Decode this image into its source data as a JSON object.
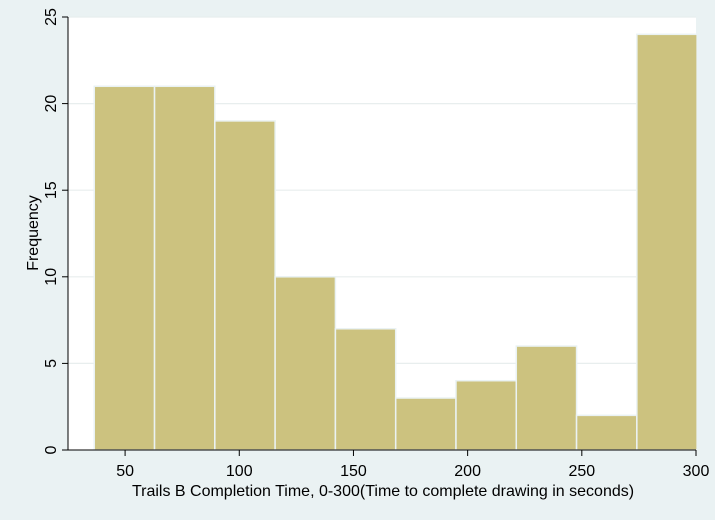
{
  "chart_data": {
    "type": "bar",
    "subtype": "histogram",
    "xlabel": "Trails B Completion Time, 0-300(Time to complete drawing in seconds)",
    "ylabel": "Frequency",
    "xlim": [
      25,
      300
    ],
    "ylim": [
      0,
      25
    ],
    "xticks": [
      50,
      100,
      150,
      200,
      250,
      300
    ],
    "yticks": [
      0,
      5,
      10,
      15,
      20,
      25
    ],
    "bins": [
      {
        "x0": 36.5,
        "x1": 62.9,
        "value": 21
      },
      {
        "x0": 62.9,
        "x1": 89.3,
        "value": 21
      },
      {
        "x0": 89.3,
        "x1": 115.7,
        "value": 19
      },
      {
        "x0": 115.7,
        "x1": 142.1,
        "value": 10
      },
      {
        "x0": 142.1,
        "x1": 168.5,
        "value": 7
      },
      {
        "x0": 168.5,
        "x1": 194.9,
        "value": 3
      },
      {
        "x0": 194.9,
        "x1": 221.3,
        "value": 4
      },
      {
        "x0": 221.3,
        "x1": 247.7,
        "value": 6
      },
      {
        "x0": 247.7,
        "x1": 274.1,
        "value": 2
      },
      {
        "x0": 274.1,
        "x1": 300.5,
        "value": 24
      }
    ],
    "colors": {
      "bar_fill": "#ccc27f",
      "bar_stroke": "#eaf2f3",
      "plot_bg": "#ffffff",
      "page_bg": "#eaf2f3",
      "grid": "#e8eeee"
    },
    "grid": true
  }
}
